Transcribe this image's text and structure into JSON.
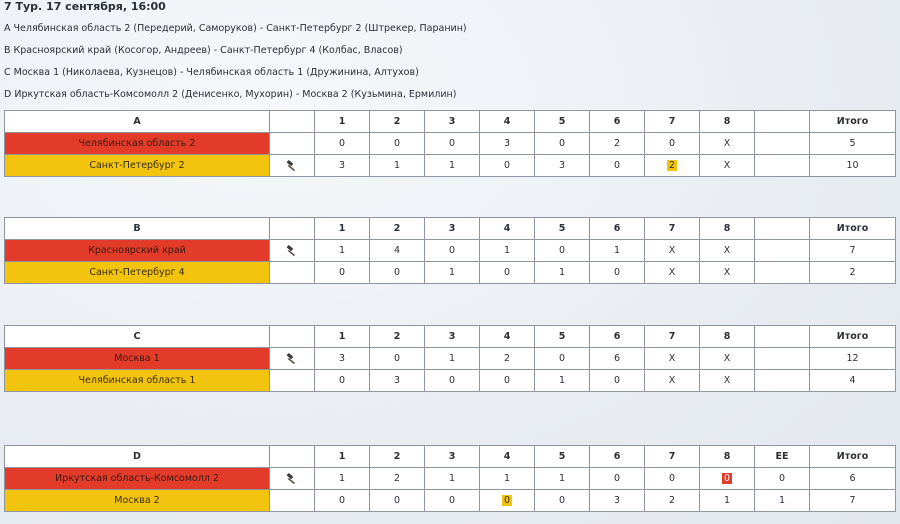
{
  "header": {
    "title": "7 Тур. 17 сентября, 16:00",
    "matches": [
      "A Челябинская область 2 (Передерий, Саморуков) - Санкт-Петербург 2 (Штрекер, Паранин)",
      "B Красноярский край (Косогор, Андреев) - Санкт-Петербург 4 (Колбас, Власов)",
      "C Москва 1 (Николаева, Кузнецов) - Челябинская область 1 (Дружинина, Алтухов)",
      "D Иркутская область-Комсомолл 2 (Денисенко, Мухорин) - Москва 2 (Кузьмина, Ермилин)"
    ]
  },
  "colors": {
    "red": "#e23b2a",
    "yellow": "#f2c40d"
  },
  "games": [
    {
      "sheet": "A",
      "columns": [
        "1",
        "2",
        "3",
        "4",
        "5",
        "6",
        "7",
        "8",
        "",
        "Итого"
      ],
      "rows": [
        {
          "team": "Челябинская область 2",
          "color": "red",
          "hammer": false,
          "ends": [
            "0",
            "0",
            "0",
            "3",
            "0",
            "2",
            "0",
            "X",
            ""
          ],
          "total": "5",
          "highlights": {}
        },
        {
          "team": "Санкт-Петербург 2",
          "color": "yellow",
          "hammer": true,
          "ends": [
            "3",
            "1",
            "1",
            "0",
            "3",
            "0",
            "2",
            "X",
            ""
          ],
          "total": "10",
          "highlights": {
            "6": "yellow"
          }
        }
      ]
    },
    {
      "sheet": "B",
      "columns": [
        "1",
        "2",
        "3",
        "4",
        "5",
        "6",
        "7",
        "8",
        "",
        "Итого"
      ],
      "rows": [
        {
          "team": "Красноярский край",
          "color": "red",
          "hammer": true,
          "ends": [
            "1",
            "4",
            "0",
            "1",
            "0",
            "1",
            "X",
            "X",
            ""
          ],
          "total": "7",
          "highlights": {}
        },
        {
          "team": "Санкт-Петербург 4",
          "color": "yellow",
          "hammer": false,
          "ends": [
            "0",
            "0",
            "1",
            "0",
            "1",
            "0",
            "X",
            "X",
            ""
          ],
          "total": "2",
          "highlights": {}
        }
      ]
    },
    {
      "sheet": "C",
      "columns": [
        "1",
        "2",
        "3",
        "4",
        "5",
        "6",
        "7",
        "8",
        "",
        "Итого"
      ],
      "rows": [
        {
          "team": "Москва 1",
          "color": "red",
          "hammer": true,
          "ends": [
            "3",
            "0",
            "1",
            "2",
            "0",
            "6",
            "X",
            "X",
            ""
          ],
          "total": "12",
          "highlights": {}
        },
        {
          "team": "Челябинская область 1",
          "color": "yellow",
          "hammer": false,
          "ends": [
            "0",
            "3",
            "0",
            "0",
            "1",
            "0",
            "X",
            "X",
            ""
          ],
          "total": "4",
          "highlights": {}
        }
      ]
    },
    {
      "sheet": "D",
      "columns": [
        "1",
        "2",
        "3",
        "4",
        "5",
        "6",
        "7",
        "8",
        "EE",
        "Итого"
      ],
      "rows": [
        {
          "team": "Иркутская область-Комсомолл 2",
          "color": "red",
          "hammer": true,
          "ends": [
            "1",
            "2",
            "1",
            "1",
            "1",
            "0",
            "0",
            "0",
            "0"
          ],
          "total": "6",
          "highlights": {
            "7": "red"
          }
        },
        {
          "team": "Москва 2",
          "color": "yellow",
          "hammer": false,
          "ends": [
            "0",
            "0",
            "0",
            "0",
            "0",
            "3",
            "2",
            "1",
            "1"
          ],
          "total": "7",
          "highlights": {
            "3": "yellow"
          }
        }
      ]
    }
  ]
}
